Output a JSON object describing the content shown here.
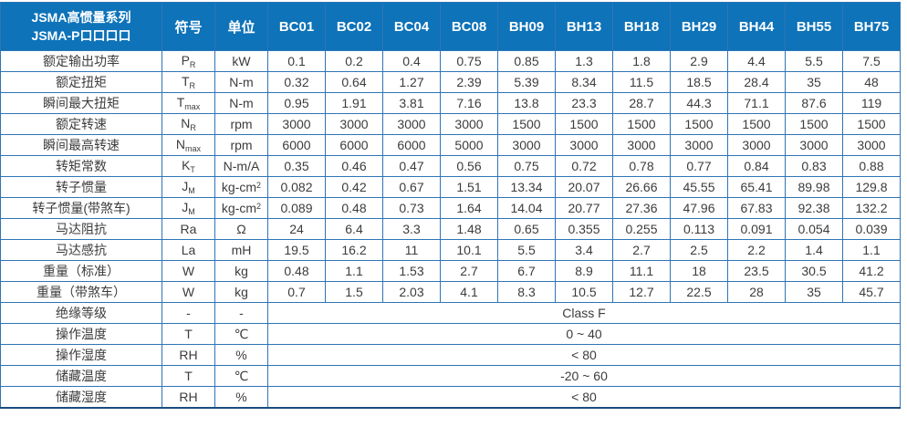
{
  "colors": {
    "header_bg": "#0e73b9",
    "header_divider": "#0a5a96",
    "body_border": "#2e75b6",
    "text": "#3c3c3c",
    "header_text": "#ffffff"
  },
  "header": {
    "title_line1": "JSMA高惯量系列",
    "title_line2": "JSMA-P口口口口",
    "symbol_col": "符号",
    "unit_col": "单位",
    "models": [
      "BC01",
      "BC02",
      "BC04",
      "BC08",
      "BH09",
      "BH13",
      "BH18",
      "BH29",
      "BH44",
      "BH55",
      "BH75"
    ]
  },
  "spec_rows": [
    {
      "label": "额定输出功率",
      "symbol": "P",
      "symbol_sub": "R",
      "unit": "kW",
      "unit_sup": "",
      "values": [
        "0.1",
        "0.2",
        "0.4",
        "0.75",
        "0.85",
        "1.3",
        "1.8",
        "2.9",
        "4.4",
        "5.5",
        "7.5"
      ]
    },
    {
      "label": "额定扭矩",
      "symbol": "T",
      "symbol_sub": "R",
      "unit": "N-m",
      "unit_sup": "",
      "values": [
        "0.32",
        "0.64",
        "1.27",
        "2.39",
        "5.39",
        "8.34",
        "11.5",
        "18.5",
        "28.4",
        "35",
        "48"
      ]
    },
    {
      "label": "瞬间最大扭矩",
      "symbol": "T",
      "symbol_sub": "max",
      "unit": "N-m",
      "unit_sup": "",
      "values": [
        "0.95",
        "1.91",
        "3.81",
        "7.16",
        "13.8",
        "23.3",
        "28.7",
        "44.3",
        "71.1",
        "87.6",
        "119"
      ]
    },
    {
      "label": "额定转速",
      "symbol": "N",
      "symbol_sub": "R",
      "unit": "rpm",
      "unit_sup": "",
      "values": [
        "3000",
        "3000",
        "3000",
        "3000",
        "1500",
        "1500",
        "1500",
        "1500",
        "1500",
        "1500",
        "1500"
      ]
    },
    {
      "label": "瞬间最高转速",
      "symbol": "N",
      "symbol_sub": "max",
      "unit": "rpm",
      "unit_sup": "",
      "values": [
        "6000",
        "6000",
        "6000",
        "5000",
        "3000",
        "3000",
        "3000",
        "3000",
        "3000",
        "3000",
        "3000"
      ]
    },
    {
      "label": "转矩常数",
      "symbol": "K",
      "symbol_sub": "T",
      "unit": "N-m/A",
      "unit_sup": "",
      "values": [
        "0.35",
        "0.46",
        "0.47",
        "0.56",
        "0.75",
        "0.72",
        "0.78",
        "0.77",
        "0.84",
        "0.83",
        "0.88"
      ]
    },
    {
      "label": "转子惯量",
      "symbol": "J",
      "symbol_sub": "M",
      "unit": "kg-cm",
      "unit_sup": "2",
      "values": [
        "0.082",
        "0.42",
        "0.67",
        "1.51",
        "13.34",
        "20.07",
        "26.66",
        "45.55",
        "65.41",
        "89.98",
        "129.8"
      ]
    },
    {
      "label": "转子惯量(带煞车)",
      "symbol": "J",
      "symbol_sub": "M",
      "unit": "kg-cm",
      "unit_sup": "2",
      "values": [
        "0.089",
        "0.48",
        "0.73",
        "1.64",
        "14.04",
        "20.77",
        "27.36",
        "47.96",
        "67.83",
        "92.38",
        "132.2"
      ]
    },
    {
      "label": "马达阻抗",
      "symbol": "Ra",
      "symbol_sub": "",
      "unit": "Ω",
      "unit_sup": "",
      "values": [
        "24",
        "6.4",
        "3.3",
        "1.48",
        "0.65",
        "0.355",
        "0.255",
        "0.113",
        "0.091",
        "0.054",
        "0.039"
      ]
    },
    {
      "label": "马达感抗",
      "symbol": "La",
      "symbol_sub": "",
      "unit": "mH",
      "unit_sup": "",
      "values": [
        "19.5",
        "16.2",
        "11",
        "10.1",
        "5.5",
        "3.4",
        "2.7",
        "2.5",
        "2.2",
        "1.4",
        "1.1"
      ]
    },
    {
      "label": "重量（标准）",
      "symbol": "W",
      "symbol_sub": "",
      "unit": "kg",
      "unit_sup": "",
      "values": [
        "0.48",
        "1.1",
        "1.53",
        "2.7",
        "6.7",
        "8.9",
        "11.1",
        "18",
        "23.5",
        "30.5",
        "41.2"
      ]
    },
    {
      "label": "重量（带煞车）",
      "symbol": "W",
      "symbol_sub": "",
      "unit": "kg",
      "unit_sup": "",
      "values": [
        "0.7",
        "1.5",
        "2.03",
        "4.1",
        "8.3",
        "10.5",
        "12.7",
        "22.5",
        "28",
        "35",
        "45.7"
      ]
    }
  ],
  "env_rows": [
    {
      "label": "绝缘等级",
      "symbol": "-",
      "unit": "-",
      "value": "Class F"
    },
    {
      "label": "操作温度",
      "symbol": "T",
      "unit": "℃",
      "value": "0 ~ 40"
    },
    {
      "label": "操作湿度",
      "symbol": "RH",
      "unit": "%",
      "value": "< 80"
    },
    {
      "label": "储藏温度",
      "symbol": "T",
      "unit": "℃",
      "value": "-20 ~ 60"
    },
    {
      "label": "储藏湿度",
      "symbol": "RH",
      "unit": "%",
      "value": "< 80"
    }
  ]
}
